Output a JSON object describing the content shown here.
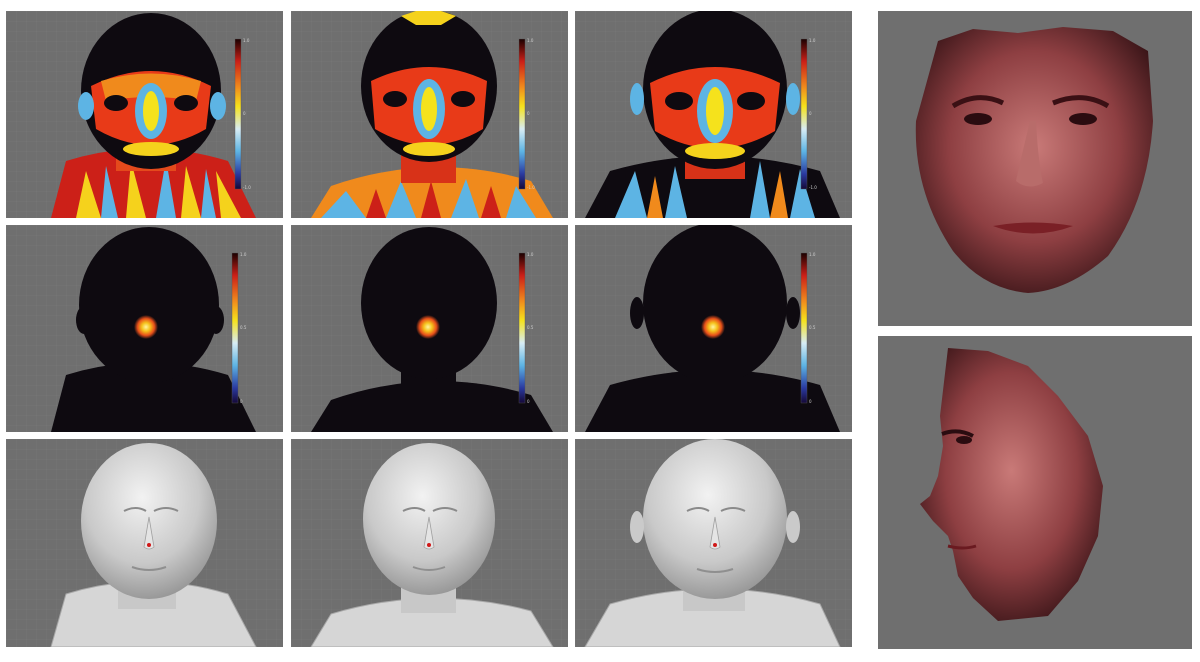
{
  "figure": {
    "layout": "3x3 grid of face heatmaps and scans, plus two rendered faces at right",
    "colors": {
      "background": "#6f6f6f",
      "separator": "#ffffff",
      "grid_line": "#7b7b7b",
      "dark_region": "#0e0a10",
      "accent_red": "#cc2018",
      "accent_yellow": "#f5d21c",
      "accent_blue": "#5db4e4"
    },
    "rows": [
      {
        "kind": "curvature-heatmap",
        "panels": 3,
        "has_colorbar": true
      },
      {
        "kind": "nose-tip-probability-heatmap",
        "panels": 3,
        "has_colorbar": true
      },
      {
        "kind": "gray-3d-scan",
        "panels": 3,
        "has_colorbar": false,
        "marker": "red nose-tip dot"
      }
    ],
    "right_column": [
      {
        "kind": "rendered-face-frontal"
      },
      {
        "kind": "rendered-face-profile"
      }
    ]
  }
}
